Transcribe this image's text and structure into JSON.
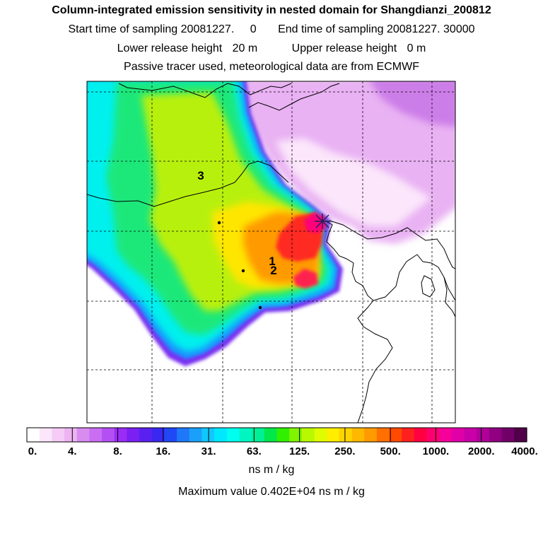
{
  "header": {
    "title": "Column-integrated emission sensitivity in nested domain for Shangdianzi_200812",
    "start_label": "Start time of sampling 20081227.",
    "start_value": "0",
    "end_label": "End time of sampling 20081227. 30000",
    "lower_label": "Lower release height",
    "lower_value": "20 m",
    "upper_label": "Upper release height",
    "upper_value": "0 m",
    "subtitle": "Passive tracer used, meteorological data are from ECMWF"
  },
  "map": {
    "markers": [
      {
        "label": "3"
      },
      {
        "label": "1"
      },
      {
        "label": "2"
      }
    ],
    "colors": {
      "frame": "#000000",
      "grid": "#000000",
      "coast": "#000000",
      "land": "#ffffff",
      "release_marker": "#202060"
    }
  },
  "colorbar": {
    "tick_labels": [
      "0.",
      "4.",
      "8.",
      "16.",
      "31.",
      "63.",
      "125.",
      "250.",
      "500.",
      "1000.",
      "2000.",
      "4000."
    ],
    "colors": [
      "#ffffff",
      "#fbe6fb",
      "#f4ccf6",
      "#edb3f2",
      "#d98cf0",
      "#c96ef2",
      "#b450f3",
      "#9a2cf5",
      "#7a20f2",
      "#5a20f0",
      "#3a28f2",
      "#2048f5",
      "#1e78f8",
      "#1aa0fa",
      "#10c8fc",
      "#00e8ff",
      "#00ffee",
      "#00f5c0",
      "#00f096",
      "#00e84a",
      "#30f000",
      "#80f400",
      "#b8f800",
      "#e0fc00",
      "#ffee00",
      "#ffd400",
      "#ffb800",
      "#ff9a00",
      "#ff7000",
      "#ff4a00",
      "#ff2020",
      "#ff0040",
      "#ff0070",
      "#f5009a",
      "#e000a8",
      "#c800a8",
      "#b00098",
      "#900080",
      "#700068",
      "#500048"
    ],
    "units": "ns m / kg",
    "max_text": "Maximum value  0.402E+04 ns m / kg"
  }
}
